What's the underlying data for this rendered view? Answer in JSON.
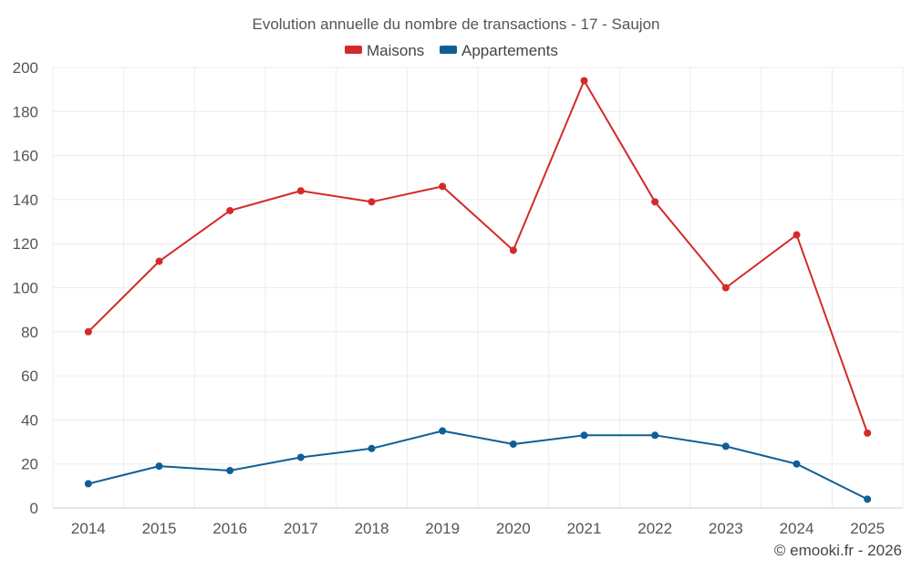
{
  "chart_data": {
    "type": "line",
    "title": "Evolution annuelle du nombre de transactions - 17 - Saujon",
    "categories": [
      "2014",
      "2015",
      "2016",
      "2017",
      "2018",
      "2019",
      "2020",
      "2021",
      "2022",
      "2023",
      "2024",
      "2025"
    ],
    "series": [
      {
        "name": "Maisons",
        "color": "#d42a2a",
        "values": [
          80,
          112,
          135,
          144,
          139,
          146,
          117,
          194,
          139,
          100,
          124,
          34
        ]
      },
      {
        "name": "Appartements",
        "color": "#0e5f96",
        "values": [
          11,
          19,
          17,
          23,
          27,
          35,
          29,
          33,
          33,
          28,
          20,
          4
        ]
      }
    ],
    "ylim": [
      0,
      200
    ],
    "yticks": [
      0,
      20,
      40,
      60,
      80,
      100,
      120,
      140,
      160,
      180,
      200
    ],
    "xlabel": "",
    "ylabel": "",
    "grid": true,
    "legend_position": "top-center"
  },
  "credit": "© emooki.fr - 2026"
}
